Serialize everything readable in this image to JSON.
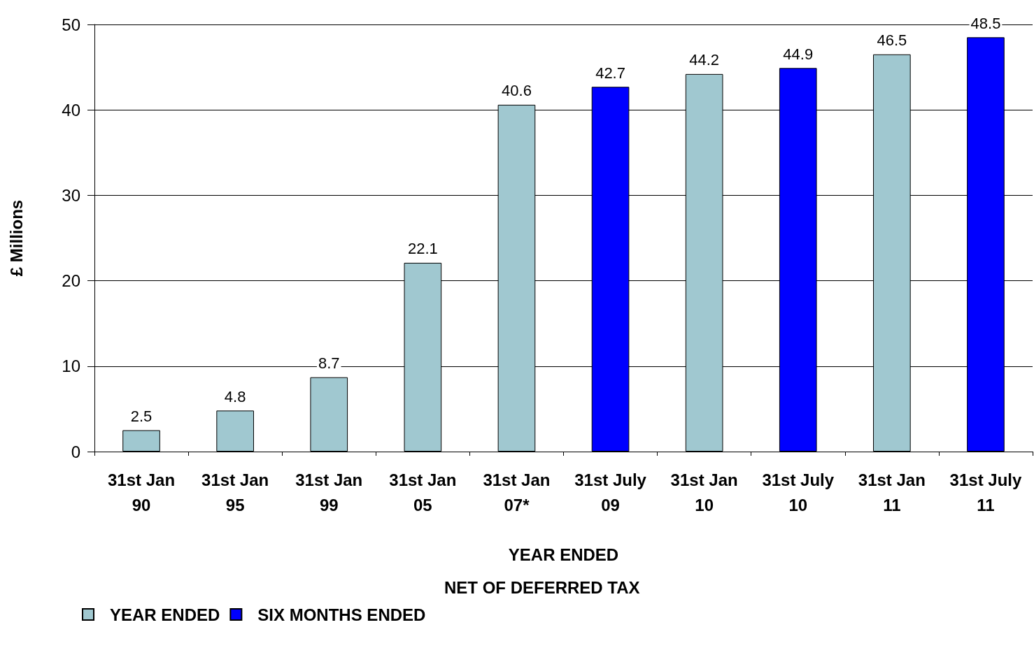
{
  "chart_data": {
    "type": "bar",
    "categories": [
      "31st Jan 90",
      "31st Jan 95",
      "31st Jan 99",
      "31st Jan 05",
      "31st Jan 07*",
      "31st July 09",
      "31st Jan 10",
      "31st July 10",
      "31st Jan 11",
      "31st July 11"
    ],
    "series": [
      {
        "name": "YEAR ENDED",
        "color": "#a0c8d0",
        "values": [
          2.5,
          4.8,
          8.7,
          22.1,
          40.6,
          null,
          44.2,
          null,
          46.5,
          null
        ]
      },
      {
        "name": "SIX MONTHS ENDED",
        "color": "#0000ff",
        "values": [
          null,
          null,
          null,
          null,
          null,
          42.7,
          null,
          44.9,
          null,
          48.5
        ]
      }
    ],
    "xlabel": "YEAR ENDED",
    "ylabel": "£ Millions",
    "annotations": [
      "NET OF DEFERRED TAX"
    ],
    "ylim": [
      0,
      50
    ],
    "yticks": [
      0,
      10,
      20,
      30,
      40,
      50
    ],
    "grid": "y",
    "legend": "bottom left",
    "data_labels": true
  }
}
